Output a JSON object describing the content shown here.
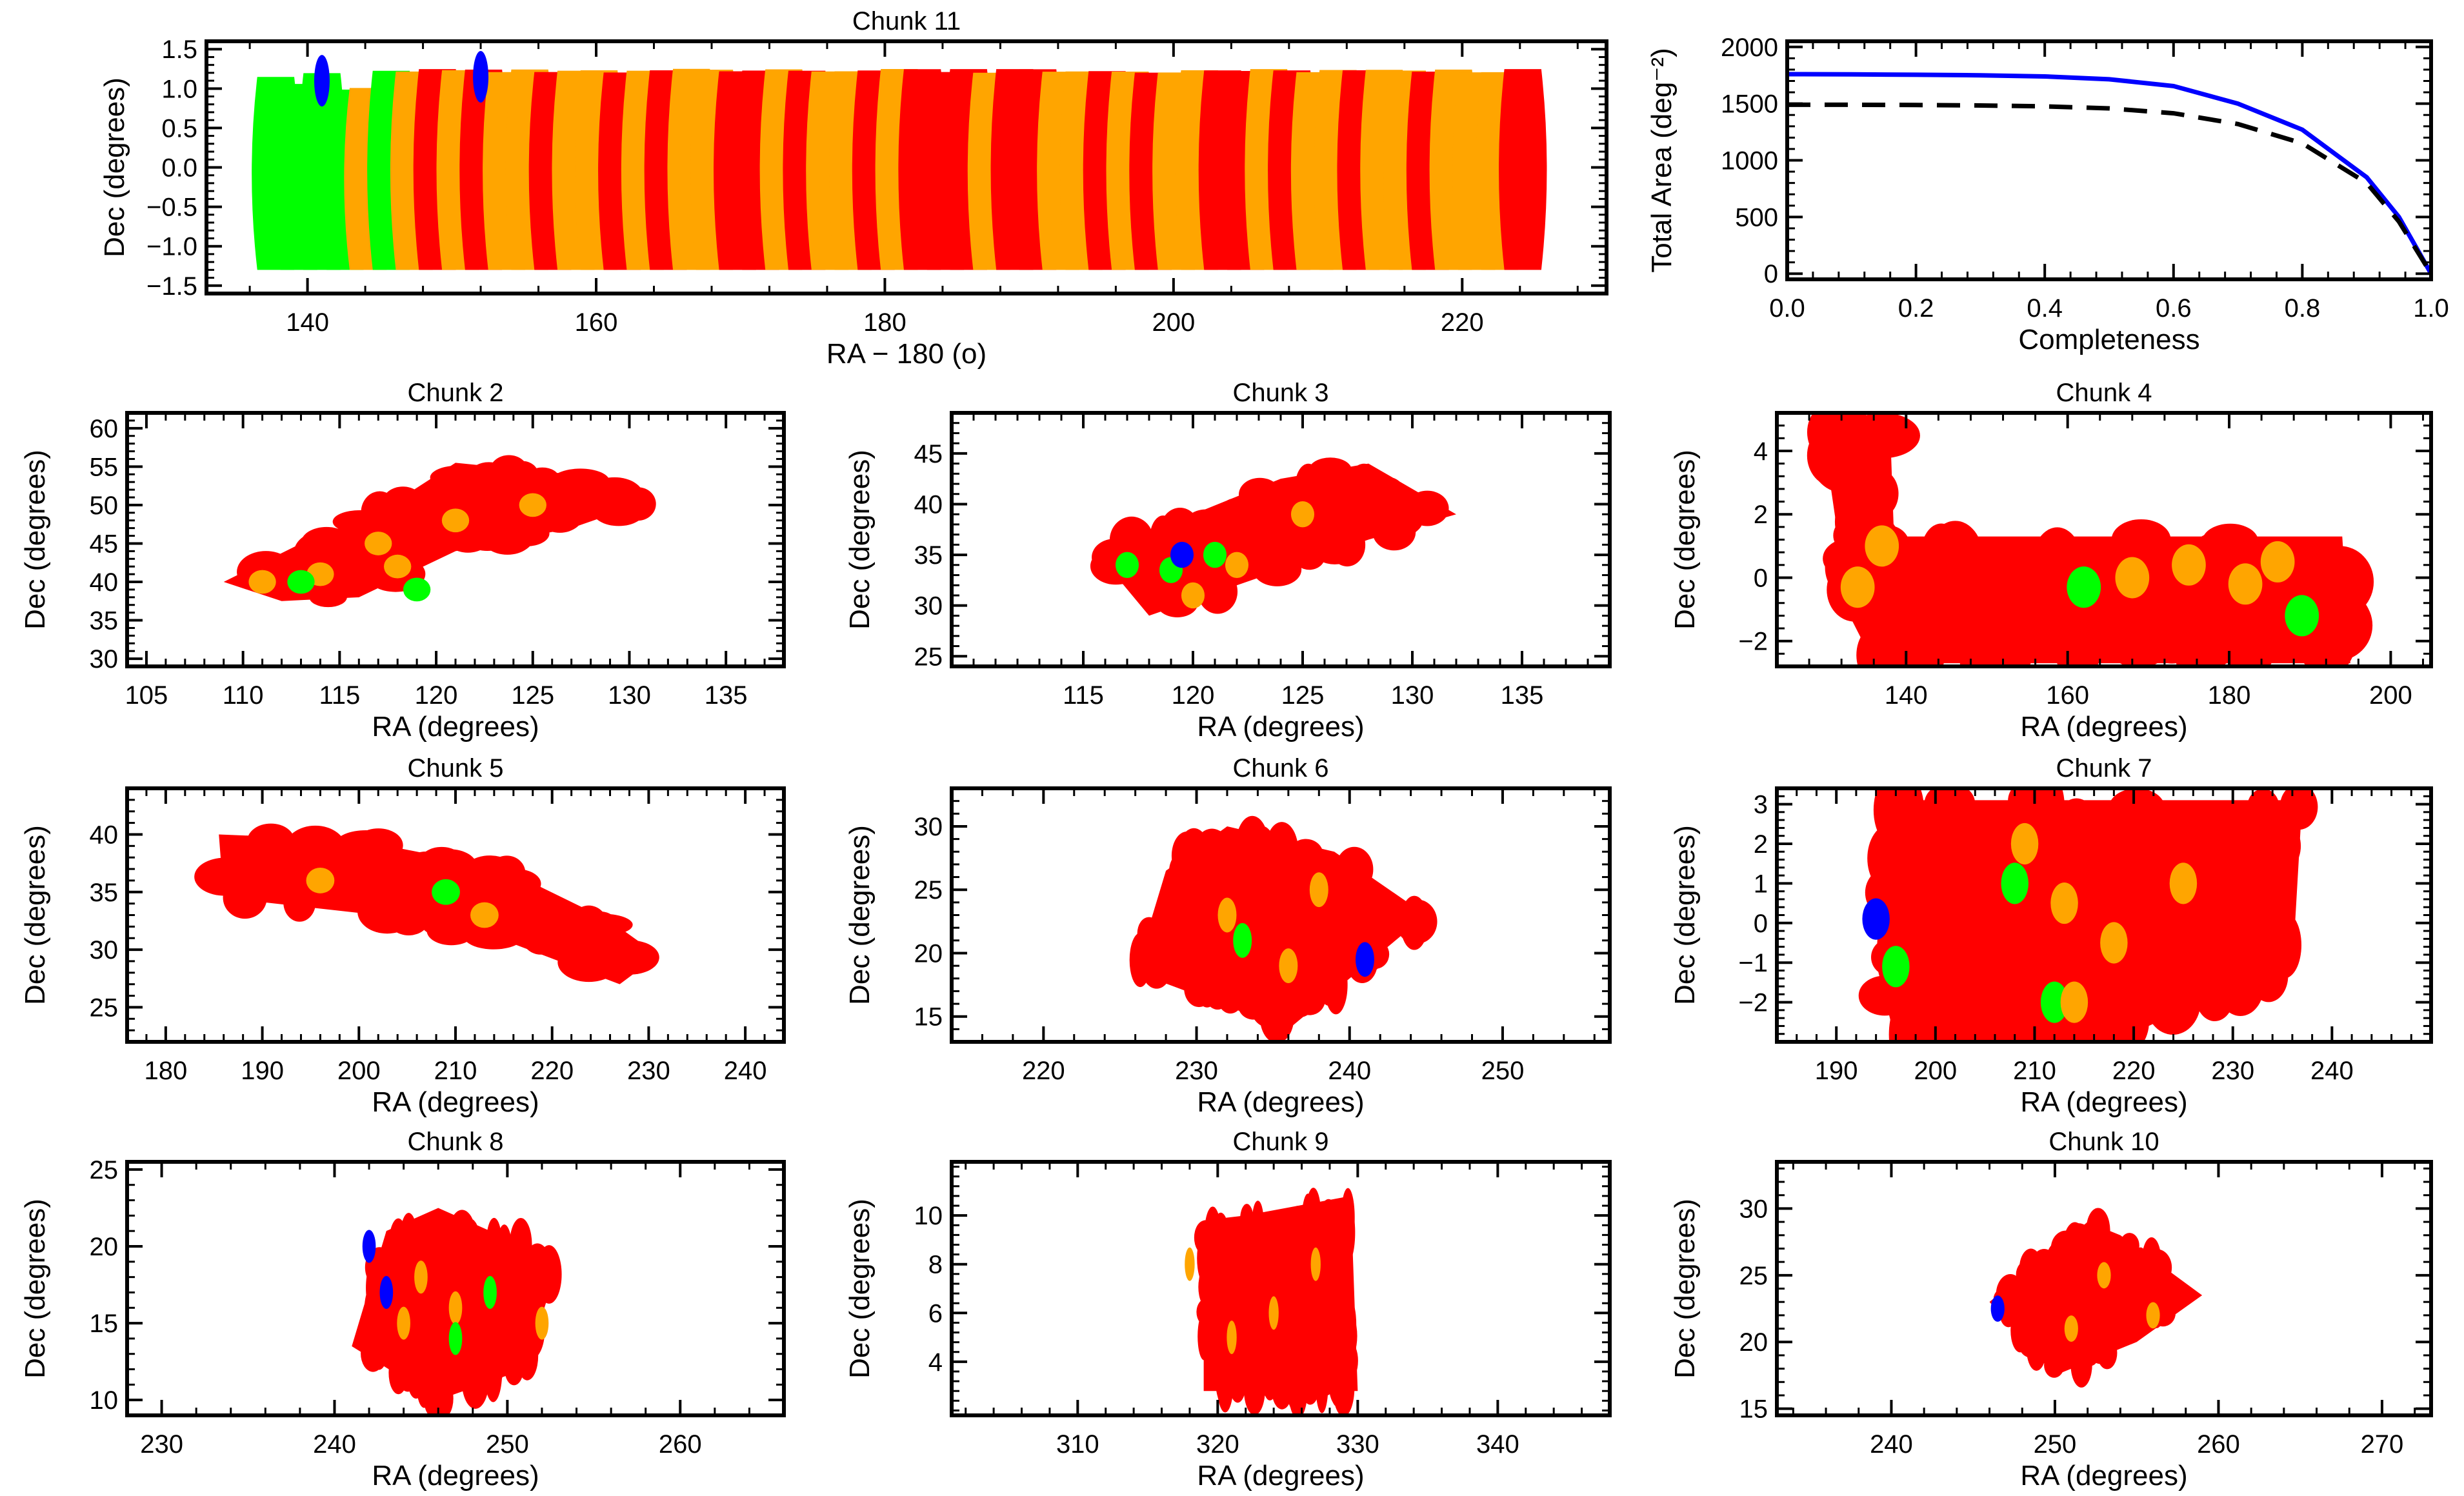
{
  "colors": {
    "green": "#00ff00",
    "orange": "#ffa500",
    "red": "#ff0000",
    "blue": "#0000ff",
    "black": "#000000"
  },
  "chart_data": [
    {
      "id": "chunk11",
      "type": "scatter",
      "title": "Chunk 11",
      "xlabel": "RA − 180 (o)",
      "ylabel": "Dec (degrees)",
      "xlim": [
        133,
        230
      ],
      "ylim": [
        -1.6,
        1.6
      ],
      "xticks": [
        140,
        160,
        180,
        200,
        220
      ],
      "yticks": [
        -1.5,
        -1.0,
        -0.5,
        0.0,
        0.5,
        1.0,
        1.5
      ],
      "yticklabels": [
        "−1.5",
        "−1.0",
        "−0.5",
        "0.0",
        "0.5",
        "1.0",
        "1.5"
      ],
      "coverage": {
        "ra_range": [
          137,
          225
        ],
        "dec_range": [
          -1.3,
          1.25
        ],
        "colwidth": 1.6,
        "pattern": [
          "green",
          "green",
          "green",
          "green",
          "orange",
          "green",
          "orange",
          "red",
          "orange",
          "red",
          "orange",
          "orange",
          "red",
          "orange",
          "orange",
          "red",
          "orange",
          "red",
          "orange",
          "orange",
          "red",
          "red",
          "orange",
          "red",
          "orange",
          "orange",
          "red",
          "orange",
          "red",
          "red",
          "red",
          "orange",
          "red",
          "red",
          "orange",
          "orange",
          "red",
          "orange",
          "red",
          "orange",
          "orange",
          "red",
          "red",
          "orange",
          "red",
          "orange",
          "orange",
          "red",
          "orange",
          "orange",
          "red",
          "orange",
          "orange",
          "orange",
          "red"
        ],
        "blue_spots": [
          [
            141,
            1.1
          ],
          [
            152,
            1.15
          ]
        ]
      }
    },
    {
      "id": "area",
      "type": "line",
      "title": "",
      "xlabel": "Completeness",
      "ylabel": "Total Area (deg⁻²)",
      "xlim": [
        0.0,
        1.0
      ],
      "ylim": [
        -50,
        2050
      ],
      "xticks": [
        0.0,
        0.2,
        0.4,
        0.6,
        0.8,
        1.0
      ],
      "xticklabels": [
        "0.0",
        "0.2",
        "0.4",
        "0.6",
        "0.8",
        "1.0"
      ],
      "yticks": [
        0,
        500,
        1000,
        1500,
        2000
      ],
      "yticklabels": [
        "0",
        "500",
        "1000",
        "1500",
        "2000"
      ],
      "series": [
        {
          "name": "blue",
          "color": "#0000ff",
          "dash": "",
          "x": [
            0.0,
            0.1,
            0.2,
            0.3,
            0.4,
            0.5,
            0.6,
            0.7,
            0.8,
            0.9,
            0.95,
            1.0
          ],
          "y": [
            1760,
            1758,
            1755,
            1750,
            1740,
            1715,
            1655,
            1500,
            1270,
            850,
            500,
            0
          ]
        },
        {
          "name": "black",
          "color": "#000000",
          "dash": "36,22",
          "x": [
            0.0,
            0.1,
            0.2,
            0.3,
            0.4,
            0.5,
            0.6,
            0.7,
            0.8,
            0.9,
            0.95,
            1.0
          ],
          "y": [
            1490,
            1490,
            1488,
            1484,
            1476,
            1458,
            1415,
            1320,
            1150,
            800,
            460,
            0
          ]
        }
      ]
    },
    {
      "id": "chunk2",
      "type": "scatter",
      "title": "Chunk 2",
      "xlabel": "RA (degrees)",
      "ylabel": "Dec (degrees)",
      "xlim": [
        104,
        138
      ],
      "ylim": [
        29,
        62
      ],
      "xticks": [
        105,
        110,
        115,
        120,
        125,
        130,
        135
      ],
      "yticks": [
        30,
        35,
        40,
        45,
        50,
        55,
        60
      ],
      "coverage": {
        "polygon": [
          [
            109,
            40
          ],
          [
            113,
            45
          ],
          [
            117,
            49
          ],
          [
            121,
            55.5
          ],
          [
            127,
            54
          ],
          [
            131,
            50.5
          ],
          [
            127,
            47
          ],
          [
            121,
            44
          ],
          [
            116,
            38
          ],
          [
            112,
            37.5
          ]
        ],
        "base": "red",
        "accents": [
          [
            "orange",
            118,
            42
          ],
          [
            "orange",
            114,
            41
          ],
          [
            "orange",
            125,
            50
          ],
          [
            "orange",
            121,
            48
          ],
          [
            "orange",
            111,
            40
          ],
          [
            "orange",
            117,
            45
          ],
          [
            "green",
            113,
            40
          ],
          [
            "green",
            119,
            39
          ]
        ]
      }
    },
    {
      "id": "chunk3",
      "type": "scatter",
      "title": "Chunk 3",
      "xlabel": "RA (degrees)",
      "ylabel": "Dec (degrees)",
      "xlim": [
        109,
        139
      ],
      "ylim": [
        24,
        49
      ],
      "xticks": [
        115,
        120,
        125,
        130,
        135
      ],
      "yticks": [
        25,
        30,
        35,
        40,
        45
      ],
      "coverage": {
        "polygon": [
          [
            115.5,
            35.5
          ],
          [
            120,
            39
          ],
          [
            124,
            42.5
          ],
          [
            128,
            44
          ],
          [
            132,
            39
          ],
          [
            128,
            36.5
          ],
          [
            122,
            32
          ],
          [
            118,
            29
          ]
        ],
        "base": "red",
        "accents": [
          [
            "green",
            117,
            34
          ],
          [
            "green",
            121,
            35
          ],
          [
            "green",
            119,
            33.5
          ],
          [
            "orange",
            122,
            34
          ],
          [
            "orange",
            125,
            39
          ],
          [
            "orange",
            120,
            31
          ],
          [
            "blue",
            119.5,
            35
          ]
        ]
      }
    },
    {
      "id": "chunk4",
      "type": "scatter",
      "title": "Chunk 4",
      "xlabel": "RA (degrees)",
      "ylabel": "Dec (degrees)",
      "xlim": [
        124,
        205
      ],
      "ylim": [
        -2.8,
        5.2
      ],
      "xticks": [
        140,
        160,
        180,
        200
      ],
      "yticks": [
        -2,
        0,
        2,
        4
      ],
      "yticklabels": [
        "−2",
        "0",
        "2",
        "4"
      ],
      "coverage": {
        "polygon": [
          [
            129.5,
            4.9
          ],
          [
            138,
            4.9
          ],
          [
            138.5,
            1.3
          ],
          [
            194,
            1.3
          ],
          [
            195,
            -2.7
          ],
          [
            136,
            -2.7
          ],
          [
            133,
            -1.2
          ]
        ],
        "base": "red",
        "accents": [
          [
            "orange",
            137,
            1
          ],
          [
            "orange",
            168,
            0
          ],
          [
            "orange",
            175,
            0.4
          ],
          [
            "orange",
            182,
            -0.2
          ],
          [
            "green",
            162,
            -0.3
          ],
          [
            "green",
            189,
            -1.2
          ],
          [
            "orange",
            134,
            -0.3
          ],
          [
            "orange",
            186,
            0.5
          ]
        ]
      }
    },
    {
      "id": "chunk5",
      "type": "scatter",
      "title": "Chunk 5",
      "xlabel": "RA (degrees)",
      "ylabel": "Dec (degrees)",
      "xlim": [
        176,
        244
      ],
      "ylim": [
        22,
        44
      ],
      "xticks": [
        180,
        190,
        200,
        210,
        220,
        230,
        240
      ],
      "yticks": [
        25,
        30,
        35,
        40
      ],
      "coverage": {
        "polygon": [
          [
            185.5,
            40
          ],
          [
            200,
            39.5
          ],
          [
            215,
            37
          ],
          [
            226,
            32.5
          ],
          [
            231,
            29.5
          ],
          [
            227,
            27
          ],
          [
            216,
            30.5
          ],
          [
            202,
            33
          ],
          [
            186,
            34.5
          ]
        ],
        "base": "red",
        "accents": [
          [
            "green",
            209,
            35
          ],
          [
            "orange",
            213,
            33
          ],
          [
            "orange",
            196,
            36
          ]
        ]
      }
    },
    {
      "id": "chunk6",
      "type": "scatter",
      "title": "Chunk 6",
      "xlabel": "RA (degrees)",
      "ylabel": "Dec (degrees)",
      "xlim": [
        214,
        257
      ],
      "ylim": [
        13,
        33
      ],
      "xticks": [
        220,
        230,
        240,
        250
      ],
      "yticks": [
        15,
        20,
        25,
        30
      ],
      "coverage": {
        "polygon": [
          [
            228,
            26.5
          ],
          [
            232,
            30
          ],
          [
            239,
            28
          ],
          [
            245,
            23
          ],
          [
            240,
            18
          ],
          [
            236,
            14
          ],
          [
            226,
            18.5
          ]
        ],
        "base": "red",
        "accents": [
          [
            "orange",
            232,
            23
          ],
          [
            "orange",
            236,
            19
          ],
          [
            "green",
            233,
            21
          ],
          [
            "orange",
            238,
            25
          ],
          [
            "blue",
            241,
            19.5
          ]
        ]
      }
    },
    {
      "id": "chunk7",
      "type": "scatter",
      "title": "Chunk 7",
      "xlabel": "RA (degrees)",
      "ylabel": "Dec (degrees)",
      "xlim": [
        184,
        250
      ],
      "ylim": [
        -3.0,
        3.4
      ],
      "xticks": [
        190,
        200,
        210,
        220,
        230,
        240
      ],
      "yticks": [
        -2,
        -1,
        0,
        1,
        2,
        3
      ],
      "yticklabels": [
        "−2",
        "−1",
        "0",
        "1",
        "2",
        "3"
      ],
      "coverage": {
        "polygon": [
          [
            195,
            3.1
          ],
          [
            237,
            3.1
          ],
          [
            236,
            -1.2
          ],
          [
            225,
            -2.2
          ],
          [
            218,
            -3.0
          ],
          [
            196,
            -3.0
          ],
          [
            194,
            -1
          ]
        ],
        "base": "red",
        "accents": [
          [
            "orange",
            209,
            2
          ],
          [
            "orange",
            213,
            0.5
          ],
          [
            "green",
            208,
            1
          ],
          [
            "orange",
            218,
            -0.5
          ],
          [
            "green",
            212,
            -2
          ],
          [
            "orange",
            214,
            -2
          ],
          [
            "green",
            196,
            -1.1
          ],
          [
            "blue",
            194,
            0.1
          ],
          [
            "orange",
            225,
            1
          ]
        ]
      }
    },
    {
      "id": "chunk8",
      "type": "scatter",
      "title": "Chunk 8",
      "xlabel": "RA (degrees)",
      "ylabel": "Dec (degrees)",
      "xlim": [
        228,
        266
      ],
      "ylim": [
        9,
        25.5
      ],
      "xticks": [
        230,
        240,
        250,
        260
      ],
      "yticks": [
        10,
        15,
        20,
        25
      ],
      "coverage": {
        "polygon": [
          [
            243,
            21
          ],
          [
            246,
            22.5
          ],
          [
            253,
            19
          ],
          [
            251,
            12
          ],
          [
            246,
            10
          ],
          [
            241,
            13.5
          ]
        ],
        "base": "red",
        "accents": [
          [
            "orange",
            245,
            18
          ],
          [
            "orange",
            247,
            16
          ],
          [
            "orange",
            244,
            15
          ],
          [
            "orange",
            252,
            15
          ],
          [
            "green",
            247,
            14
          ],
          [
            "green",
            249,
            17
          ],
          [
            "blue",
            243,
            17
          ],
          [
            "blue",
            242,
            20
          ]
        ]
      }
    },
    {
      "id": "chunk9",
      "type": "scatter",
      "title": "Chunk 9",
      "xlabel": "RA (degrees)",
      "ylabel": "Dec (degrees)",
      "xlim": [
        301,
        348
      ],
      "ylim": [
        1.8,
        12.2
      ],
      "xticks": [
        310,
        320,
        330,
        340
      ],
      "yticks": [
        4,
        6,
        8,
        10
      ],
      "coverage": {
        "polygon": [
          [
            319,
            9.8
          ],
          [
            322,
            10
          ],
          [
            329.5,
            10.8
          ],
          [
            330,
            2.8
          ],
          [
            319,
            2.8
          ]
        ],
        "base": "red",
        "accents": [
          [
            "orange",
            318,
            8
          ],
          [
            "orange",
            324,
            6
          ],
          [
            "orange",
            321,
            5
          ],
          [
            "orange",
            327,
            8
          ]
        ]
      }
    },
    {
      "id": "chunk10",
      "type": "scatter",
      "title": "Chunk 10",
      "xlabel": "RA (degrees)",
      "ylabel": "Dec (degrees)",
      "xlim": [
        233,
        273
      ],
      "ylim": [
        14.5,
        33.5
      ],
      "xticks": [
        240,
        250,
        260,
        270
      ],
      "yticks": [
        15,
        20,
        25,
        30
      ],
      "coverage": {
        "polygon": [
          [
            246,
            23
          ],
          [
            252,
            29
          ],
          [
            254,
            28
          ],
          [
            259,
            23.5
          ],
          [
            255,
            20
          ],
          [
            250,
            17.5
          ]
        ],
        "base": "red",
        "accents": [
          [
            "orange",
            253,
            25
          ],
          [
            "orange",
            256,
            22
          ],
          [
            "orange",
            251,
            21
          ],
          [
            "blue",
            246.5,
            22.5
          ]
        ]
      }
    }
  ]
}
